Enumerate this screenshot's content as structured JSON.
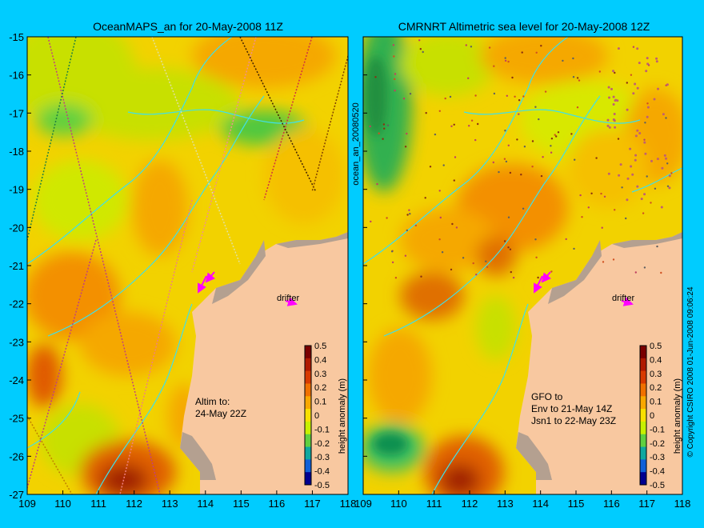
{
  "left_panel": {
    "title": "OceanMAPS_an for 20-May-2008 11Z",
    "drifter_label": "drifter",
    "note_lines": [
      "Altim to:",
      "24-May 22Z"
    ]
  },
  "right_panel": {
    "title": "CMRNRT Altimetric sea level  for 20-May-2008 12Z",
    "drifter_label": "drifter",
    "note_lines": [
      "GFO to",
      "Env to 21-May 14Z",
      "Jsn1 to 22-May 23Z"
    ]
  },
  "vertical_label": "ocean_an_20080520",
  "copyright": "© Copyright CSIRO 2008  01-Jun-2008 09:06:24",
  "colorbar": {
    "label": "height anomaly (m)",
    "ticks": [
      "0.5",
      "0.4",
      "0.3",
      "0.2",
      "0.1",
      "0",
      "-0.1",
      "-0.2",
      "-0.3",
      "-0.4",
      "-0.5"
    ],
    "colors": [
      "#7a0000",
      "#b01a00",
      "#d83a00",
      "#f07000",
      "#f8a800",
      "#f8e000",
      "#c8f000",
      "#60d040",
      "#10a8a0",
      "#1060d8",
      "#000090"
    ]
  },
  "axes": {
    "x_ticks": [
      "109",
      "110",
      "111",
      "112",
      "113",
      "114",
      "115",
      "116",
      "117",
      "118"
    ],
    "y_ticks": [
      "-15",
      "-16",
      "-17",
      "-18",
      "-19",
      "-20",
      "-21",
      "-22",
      "-23",
      "-24",
      "-25",
      "-26",
      "-27"
    ],
    "lon_range": [
      109,
      118
    ],
    "lat_range": [
      -27,
      -15
    ]
  },
  "colors": {
    "background": "#00ccff",
    "land": "#f8c8a0",
    "coast_fill": "#b4a090",
    "isobath": "#40e0e8",
    "drifter": "#ff00ff",
    "base_sea": "#f2d200"
  }
}
